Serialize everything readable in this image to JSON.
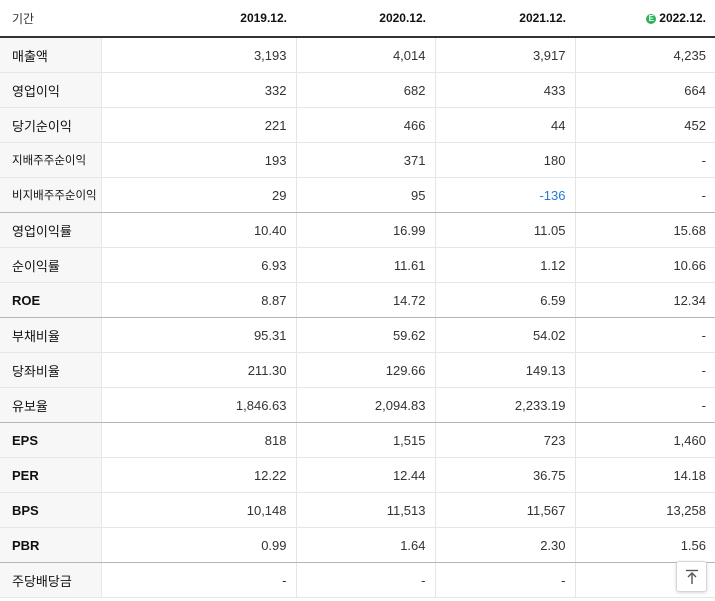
{
  "table": {
    "header": {
      "label": "기간",
      "periods": [
        "2019.12.",
        "2020.12.",
        "2021.12.",
        "2022.12."
      ],
      "estimate_badge": "E"
    },
    "rows": [
      {
        "label": "매출액",
        "values": [
          "3,193",
          "4,014",
          "3,917",
          "4,235"
        ]
      },
      {
        "label": "영업이익",
        "values": [
          "332",
          "682",
          "433",
          "664"
        ]
      },
      {
        "label": "당기순이익",
        "values": [
          "221",
          "466",
          "44",
          "452"
        ]
      },
      {
        "label": "지배주주순이익",
        "values": [
          "193",
          "371",
          "180",
          "-"
        ]
      },
      {
        "label": "비지배주주순이익",
        "values": [
          "29",
          "95",
          "-136",
          "-"
        ]
      },
      {
        "label": "영업이익률",
        "values": [
          "10.40",
          "16.99",
          "11.05",
          "15.68"
        ]
      },
      {
        "label": "순이익률",
        "values": [
          "6.93",
          "11.61",
          "1.12",
          "10.66"
        ]
      },
      {
        "label": "ROE",
        "values": [
          "8.87",
          "14.72",
          "6.59",
          "12.34"
        ]
      },
      {
        "label": "부채비율",
        "values": [
          "95.31",
          "59.62",
          "54.02",
          "-"
        ]
      },
      {
        "label": "당좌비율",
        "values": [
          "211.30",
          "129.66",
          "149.13",
          "-"
        ]
      },
      {
        "label": "유보율",
        "values": [
          "1,846.63",
          "2,094.83",
          "2,233.19",
          "-"
        ]
      },
      {
        "label": "EPS",
        "values": [
          "818",
          "1,515",
          "723",
          "1,460"
        ]
      },
      {
        "label": "PER",
        "values": [
          "12.22",
          "12.44",
          "36.75",
          "14.18"
        ]
      },
      {
        "label": "BPS",
        "values": [
          "10,148",
          "11,513",
          "11,567",
          "13,258"
        ]
      },
      {
        "label": "PBR",
        "values": [
          "0.99",
          "1.64",
          "2.30",
          "1.56"
        ]
      },
      {
        "label": "주당배당금",
        "values": [
          "-",
          "-",
          "-",
          "-"
        ]
      }
    ]
  },
  "colors": {
    "negative": "#1f7cd1",
    "estimate_badge": "#2fb35a"
  },
  "icons": {
    "scroll_top": "arrow-up-to-line-icon"
  }
}
